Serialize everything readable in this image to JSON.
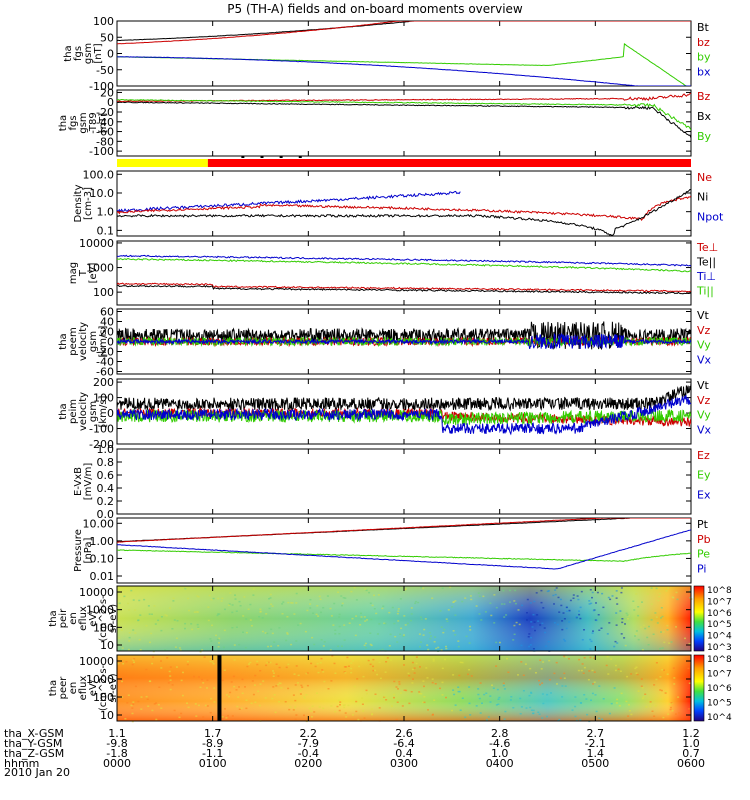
{
  "title": "P5 (TH-A) fields and on-board moments overview",
  "date": "2010 Jan 20",
  "chart_data": {
    "type": "line",
    "time_range": [
      "0000",
      "0600"
    ],
    "panels": [
      {
        "id": "fgs",
        "ylabel_lines": [
          "tha",
          "fgs",
          "gsm",
          "[nT]"
        ],
        "yscale": "linear",
        "yticks": [
          "100",
          "50",
          "0",
          "-50",
          "-100"
        ],
        "ylim": [
          -100,
          100
        ],
        "legend": [
          {
            "label": "Bt",
            "color": "#000000"
          },
          {
            "label": "bz",
            "color": "#cc0000"
          },
          {
            "label": "by",
            "color": "#33cc00"
          },
          {
            "label": "bx",
            "color": "#0000cc"
          }
        ]
      },
      {
        "id": "fgs-t89",
        "ylabel_lines": [
          "tha",
          "fgs",
          "gsm",
          "-T89",
          "[nT]"
        ],
        "yscale": "linear",
        "yticks": [
          "20",
          "0",
          "-20",
          "-40",
          "-60",
          "-80",
          "-100"
        ],
        "ylim": [
          -110,
          25
        ],
        "legend": [
          {
            "label": "Bz",
            "color": "#cc0000"
          },
          {
            "label": "Bx",
            "color": "#000000"
          },
          {
            "label": "By",
            "color": "#33cc00"
          }
        ]
      },
      {
        "id": "density",
        "ylabel_lines": [
          "Density",
          "[cm-3]"
        ],
        "yscale": "log",
        "yticks": [
          "100.0",
          "10.0",
          "1.0",
          "0.1"
        ],
        "ylim": [
          0.05,
          150
        ],
        "legend": [
          {
            "label": "Ne",
            "color": "#cc0000"
          },
          {
            "label": "Ni",
            "color": "#000000"
          },
          {
            "label": "Npot",
            "color": "#0000cc"
          }
        ]
      },
      {
        "id": "temp",
        "ylabel_lines": [
          "mag",
          "T",
          "[eV]"
        ],
        "yscale": "log",
        "yticks": [
          "10000",
          "1000",
          "100"
        ],
        "ylim": [
          30,
          12000
        ],
        "legend": [
          {
            "label": "Te⊥",
            "color": "#cc0000"
          },
          {
            "label": "Te||",
            "color": "#000000"
          },
          {
            "label": "Ti⊥",
            "color": "#0000cc"
          },
          {
            "label": "Ti||",
            "color": "#33cc00"
          }
        ]
      },
      {
        "id": "peem-vel",
        "ylabel_lines": [
          "tha",
          "peem",
          "velocity",
          "gsm",
          "[km/s]"
        ],
        "yscale": "linear",
        "yticks": [
          "60",
          "40",
          "20",
          "0",
          "-20",
          "-40",
          "-60"
        ],
        "ylim": [
          -65,
          65
        ],
        "legend": [
          {
            "label": "Vt",
            "color": "#000000"
          },
          {
            "label": "Vz",
            "color": "#cc0000"
          },
          {
            "label": "Vy",
            "color": "#33cc00"
          },
          {
            "label": "Vx",
            "color": "#0000cc"
          }
        ]
      },
      {
        "id": "peim-vel",
        "ylabel_lines": [
          "tha",
          "peim",
          "velocity",
          "gsm",
          "[km/s]"
        ],
        "yscale": "linear",
        "yticks": [
          "200",
          "100",
          "0",
          "-100",
          "-200"
        ],
        "ylim": [
          -200,
          220
        ],
        "legend": [
          {
            "label": "Vt",
            "color": "#000000"
          },
          {
            "label": "Vz",
            "color": "#cc0000"
          },
          {
            "label": "Vy",
            "color": "#33cc00"
          },
          {
            "label": "Vx",
            "color": "#0000cc"
          }
        ]
      },
      {
        "id": "e-vxb",
        "ylabel_lines": [
          "E-VxB",
          "[mV/m]"
        ],
        "yscale": "linear",
        "yticks": [
          "1.0",
          "0.8",
          "0.6",
          "0.4",
          "0.2",
          "0.0"
        ],
        "ylim": [
          0,
          1
        ],
        "legend": [
          {
            "label": "Ez",
            "color": "#cc0000"
          },
          {
            "label": "Ey",
            "color": "#33cc00"
          },
          {
            "label": "Ex",
            "color": "#0000cc"
          }
        ]
      },
      {
        "id": "pressure",
        "ylabel_lines": [
          "Pressure",
          "[nPa]"
        ],
        "yscale": "log",
        "yticks": [
          "10.00",
          "1.00",
          "0.10",
          "0.01"
        ],
        "ylim": [
          0.004,
          20
        ],
        "legend": [
          {
            "label": "Pt",
            "color": "#000000"
          },
          {
            "label": "Pb",
            "color": "#cc0000"
          },
          {
            "label": "Pe",
            "color": "#33cc00"
          },
          {
            "label": "Pi",
            "color": "#0000cc"
          }
        ]
      },
      {
        "id": "peir-spec",
        "ylabel_lines": [
          "tha",
          "peir",
          "en",
          "eflux",
          "eV/",
          "(cm^2-s-",
          "sr-eV)"
        ],
        "yscale": "log",
        "yticks": [
          "10000",
          "1000",
          "100",
          "10"
        ],
        "colorbar_labels": [
          "10^8",
          "10^7",
          "10^6",
          "10^5",
          "10^4",
          "10^3"
        ]
      },
      {
        "id": "peer-spec",
        "ylabel_lines": [
          "tha",
          "peer",
          "en",
          "eflux",
          "eV/",
          "(cm^2-s-",
          "sr-eV)"
        ],
        "yscale": "log",
        "yticks": [
          "10000",
          "1000",
          "100",
          "10"
        ],
        "colorbar_labels": [
          "10^8",
          "10^7",
          "10^6",
          "10^5",
          "10^4"
        ]
      }
    ],
    "x_axis": {
      "rows": [
        {
          "label": "tha_X-GSM",
          "values": [
            "1.1",
            "1.7",
            "2.2",
            "2.6",
            "2.8",
            "2.7",
            "1.2"
          ]
        },
        {
          "label": "tha_Y-GSM",
          "values": [
            "-9.8",
            "-8.9",
            "-7.9",
            "-6.4",
            "-4.6",
            "-2.1",
            "1.0"
          ]
        },
        {
          "label": "tha_Z-GSM",
          "values": [
            "-1.8",
            "-1.1",
            "-0.4",
            "0.4",
            "1.0",
            "1.4",
            "0.7"
          ]
        },
        {
          "label": "hhmm",
          "values": [
            "0000",
            "0100",
            "0200",
            "0300",
            "0400",
            "0500",
            "0600"
          ]
        }
      ]
    },
    "state_bar": {
      "colors": [
        "#ffff00",
        "#ff0000"
      ],
      "switch_time_hours": 0.95
    }
  }
}
